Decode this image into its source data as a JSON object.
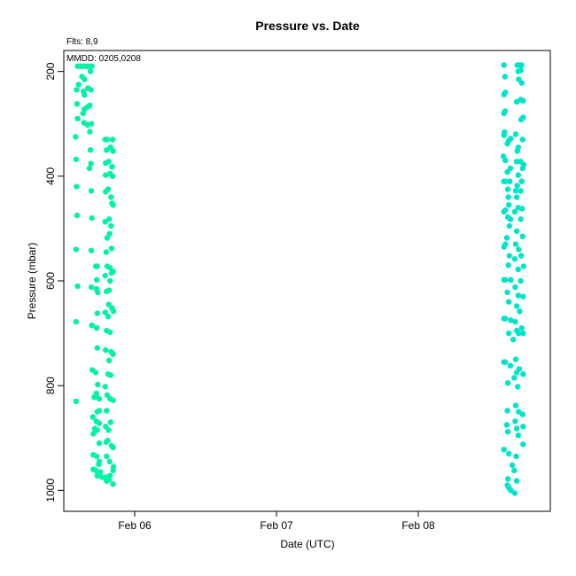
{
  "chart_data": {
    "type": "scatter",
    "title": "Pressure  vs. Date",
    "annotations": [
      "Flts: 8,9",
      "MMDD: 0205,0208"
    ],
    "xlabel": "Date (UTC)",
    "ylabel": "Pressure (mbar)",
    "x_ticks": [
      "Feb 06",
      "Feb 07",
      "Feb 08"
    ],
    "y_ticks": [
      200,
      400,
      600,
      800,
      1000
    ],
    "ylim": [
      1040,
      160
    ],
    "y_inverted": true,
    "grid": false,
    "series": [
      {
        "color": "#00f2a8",
        "points": [
          [
            "2005-02-05T14:20",
            190
          ],
          [
            "2005-02-05T14:50",
            190
          ],
          [
            "2005-02-05T15:20",
            190
          ],
          [
            "2005-02-05T15:50",
            190
          ],
          [
            "2005-02-05T16:20",
            190
          ],
          [
            "2005-02-05T16:45",
            190
          ],
          [
            "2005-02-05T16:30",
            200
          ],
          [
            "2005-02-05T15:05",
            210
          ],
          [
            "2005-02-05T15:30",
            215
          ],
          [
            "2005-02-05T14:30",
            225
          ],
          [
            "2005-02-05T14:10",
            235
          ],
          [
            "2005-02-05T15:20",
            238
          ],
          [
            "2005-02-05T16:05",
            232
          ],
          [
            "2005-02-05T16:35",
            235
          ],
          [
            "2005-02-05T15:30",
            245
          ],
          [
            "2005-02-05T14:15",
            262
          ],
          [
            "2005-02-05T16:00",
            268
          ],
          [
            "2005-02-05T15:30",
            272
          ],
          [
            "2005-02-05T16:25",
            265
          ],
          [
            "2005-02-05T15:15",
            280
          ],
          [
            "2005-02-05T14:20",
            290
          ],
          [
            "2005-02-05T15:25",
            298
          ],
          [
            "2005-02-05T16:00",
            302
          ],
          [
            "2005-02-05T16:40",
            300
          ],
          [
            "2005-02-05T16:25",
            315
          ],
          [
            "2005-02-05T14:00",
            325
          ],
          [
            "2005-02-05T19:00",
            330
          ],
          [
            "2005-02-05T19:20",
            330
          ],
          [
            "2005-02-05T20:15",
            330
          ],
          [
            "2005-02-05T19:55",
            345
          ],
          [
            "2005-02-05T16:30",
            350
          ],
          [
            "2005-02-05T20:20",
            352
          ],
          [
            "2005-02-05T19:15",
            350
          ],
          [
            "2005-02-05T14:05",
            368
          ],
          [
            "2005-02-05T19:05",
            375
          ],
          [
            "2005-02-05T19:35",
            372
          ],
          [
            "2005-02-05T16:35",
            376
          ],
          [
            "2005-02-05T20:10",
            382
          ],
          [
            "2005-02-05T16:20",
            385
          ],
          [
            "2005-02-05T20:15",
            400
          ],
          [
            "2005-02-05T19:05",
            398
          ],
          [
            "2005-02-05T19:50",
            395
          ],
          [
            "2005-02-05T14:10",
            420
          ],
          [
            "2005-02-05T19:30",
            425
          ],
          [
            "2005-02-05T19:05",
            430
          ],
          [
            "2005-02-05T16:40",
            428
          ],
          [
            "2005-02-05T20:00",
            440
          ],
          [
            "2005-02-05T20:10",
            452
          ],
          [
            "2005-02-05T20:20",
            455
          ],
          [
            "2005-02-05T14:15",
            475
          ],
          [
            "2005-02-05T16:45",
            480
          ],
          [
            "2005-02-05T19:40",
            482
          ],
          [
            "2005-02-05T19:00",
            487
          ],
          [
            "2005-02-05T20:00",
            495
          ],
          [
            "2005-02-05T19:45",
            510
          ],
          [
            "2005-02-05T19:20",
            518
          ],
          [
            "2005-02-05T20:05",
            538
          ],
          [
            "2005-02-05T14:05",
            540
          ],
          [
            "2005-02-05T16:40",
            542
          ],
          [
            "2005-02-05T19:10",
            545
          ],
          [
            "2005-02-05T17:25",
            572
          ],
          [
            "2005-02-05T17:40",
            572
          ],
          [
            "2005-02-05T19:20",
            572
          ],
          [
            "2005-02-05T19:50",
            575
          ],
          [
            "2005-02-05T20:20",
            582
          ],
          [
            "2005-02-05T20:05",
            585
          ],
          [
            "2005-02-05T19:00",
            590
          ],
          [
            "2005-02-05T17:35",
            598
          ],
          [
            "2005-02-05T19:50",
            600
          ],
          [
            "2005-02-05T14:20",
            610
          ],
          [
            "2005-02-05T16:40",
            612
          ],
          [
            "2005-02-05T17:30",
            615
          ],
          [
            "2005-02-05T19:15",
            620
          ],
          [
            "2005-02-05T19:40",
            618
          ],
          [
            "2005-02-05T17:45",
            622
          ],
          [
            "2005-02-05T19:35",
            645
          ],
          [
            "2005-02-05T20:10",
            652
          ],
          [
            "2005-02-05T20:25",
            658
          ],
          [
            "2005-02-05T19:00",
            660
          ],
          [
            "2005-02-05T17:40",
            662
          ],
          [
            "2005-02-05T19:30",
            668
          ],
          [
            "2005-02-05T14:05",
            678
          ],
          [
            "2005-02-05T16:45",
            685
          ],
          [
            "2005-02-05T17:35",
            690
          ],
          [
            "2005-02-05T19:15",
            695
          ],
          [
            "2005-02-05T19:50",
            698
          ],
          [
            "2005-02-05T17:40",
            728
          ],
          [
            "2005-02-05T19:05",
            732
          ],
          [
            "2005-02-05T20:00",
            735
          ],
          [
            "2005-02-05T20:20",
            740
          ],
          [
            "2005-02-05T19:40",
            752
          ],
          [
            "2005-02-05T16:50",
            770
          ],
          [
            "2005-02-05T17:25",
            775
          ],
          [
            "2005-02-05T19:30",
            778
          ],
          [
            "2005-02-05T19:55",
            780
          ],
          [
            "2005-02-05T17:45",
            798
          ],
          [
            "2005-02-05T19:00",
            802
          ],
          [
            "2005-02-05T17:30",
            815
          ],
          [
            "2005-02-05T17:10",
            822
          ],
          [
            "2005-02-05T17:30",
            820
          ],
          [
            "2005-02-05T18:00",
            825
          ],
          [
            "2005-02-05T19:20",
            818
          ],
          [
            "2005-02-05T19:50",
            825
          ],
          [
            "2005-02-05T20:20",
            828
          ],
          [
            "2005-02-05T14:05",
            830
          ],
          [
            "2005-02-05T18:00",
            848
          ],
          [
            "2005-02-05T17:40",
            850
          ],
          [
            "2005-02-05T19:15",
            848
          ],
          [
            "2005-02-05T16:55",
            860
          ],
          [
            "2005-02-05T17:30",
            868
          ],
          [
            "2005-02-05T18:00",
            872
          ],
          [
            "2005-02-05T19:55",
            870
          ],
          [
            "2005-02-05T17:15",
            882
          ],
          [
            "2005-02-05T17:40",
            885
          ],
          [
            "2005-02-05T19:05",
            878
          ],
          [
            "2005-02-05T17:00",
            892
          ],
          [
            "2005-02-05T19:35",
            885
          ],
          [
            "2005-02-05T19:10",
            908
          ],
          [
            "2005-02-05T19:25",
            905
          ],
          [
            "2005-02-05T18:00",
            910
          ],
          [
            "2005-02-05T20:05",
            915
          ],
          [
            "2005-02-05T20:20",
            918
          ],
          [
            "2005-02-05T17:00",
            932
          ],
          [
            "2005-02-05T17:35",
            935
          ],
          [
            "2005-02-05T19:15",
            935
          ],
          [
            "2005-02-05T18:00",
            945
          ],
          [
            "2005-02-05T17:55",
            950
          ],
          [
            "2005-02-05T19:45",
            945
          ],
          [
            "2005-02-05T20:25",
            955
          ],
          [
            "2005-02-05T17:00",
            960
          ],
          [
            "2005-02-05T17:25",
            962
          ],
          [
            "2005-02-05T18:10",
            965
          ],
          [
            "2005-02-05T20:20",
            962
          ],
          [
            "2005-02-05T17:40",
            972
          ],
          [
            "2005-02-05T18:30",
            975
          ],
          [
            "2005-02-05T19:10",
            975
          ],
          [
            "2005-02-05T19:50",
            972
          ],
          [
            "2005-02-05T19:15",
            982
          ],
          [
            "2005-02-05T19:40",
            980
          ],
          [
            "2005-02-05T20:20",
            988
          ]
        ]
      },
      {
        "color": "#00e5c8",
        "points": [
          [
            "2005-02-08T14:30",
            188
          ],
          [
            "2005-02-08T16:45",
            188
          ],
          [
            "2005-02-08T17:10",
            188
          ],
          [
            "2005-02-08T17:30",
            188
          ],
          [
            "2005-02-08T16:55",
            200
          ],
          [
            "2005-02-08T17:20",
            198
          ],
          [
            "2005-02-08T14:40",
            210
          ],
          [
            "2005-02-08T17:00",
            215
          ],
          [
            "2005-02-08T17:30",
            222
          ],
          [
            "2005-02-08T14:45",
            240
          ],
          [
            "2005-02-08T14:30",
            244
          ],
          [
            "2005-02-08T17:20",
            254
          ],
          [
            "2005-02-08T17:45",
            256
          ],
          [
            "2005-02-08T16:40",
            258
          ],
          [
            "2005-02-08T14:40",
            276
          ],
          [
            "2005-02-08T14:30",
            280
          ],
          [
            "2005-02-08T17:45",
            288
          ],
          [
            "2005-02-08T17:25",
            292
          ],
          [
            "2005-02-08T14:35",
            316
          ],
          [
            "2005-02-08T14:30",
            322
          ],
          [
            "2005-02-08T16:30",
            320
          ],
          [
            "2005-02-08T15:40",
            328
          ],
          [
            "2005-02-08T15:20",
            332
          ],
          [
            "2005-02-08T17:40",
            330
          ],
          [
            "2005-02-08T15:05",
            338
          ],
          [
            "2005-02-08T16:55",
            345
          ],
          [
            "2005-02-08T16:45",
            352
          ],
          [
            "2005-02-08T14:25",
            362
          ],
          [
            "2005-02-08T14:45",
            370
          ],
          [
            "2005-02-08T16:40",
            372
          ],
          [
            "2005-02-08T17:20",
            372
          ],
          [
            "2005-02-08T17:50",
            378
          ],
          [
            "2005-02-08T17:40",
            385
          ],
          [
            "2005-02-08T15:35",
            385
          ],
          [
            "2005-02-08T15:05",
            392
          ],
          [
            "2005-02-08T16:55",
            398
          ],
          [
            "2005-02-08T14:30",
            410
          ],
          [
            "2005-02-08T14:45",
            410
          ],
          [
            "2005-02-08T15:30",
            410
          ],
          [
            "2005-02-08T17:30",
            410
          ],
          [
            "2005-02-08T16:45",
            418
          ],
          [
            "2005-02-08T15:10",
            425
          ],
          [
            "2005-02-08T16:30",
            428
          ],
          [
            "2005-02-08T17:20",
            428
          ],
          [
            "2005-02-08T15:15",
            440
          ],
          [
            "2005-02-08T16:40",
            440
          ],
          [
            "2005-02-08T15:20",
            455
          ],
          [
            "2005-02-08T16:55",
            460
          ],
          [
            "2005-02-08T17:35",
            462
          ],
          [
            "2005-02-08T14:30",
            468
          ],
          [
            "2005-02-08T14:45",
            465
          ],
          [
            "2005-02-08T16:20",
            468
          ],
          [
            "2005-02-08T15:10",
            478
          ],
          [
            "2005-02-08T15:35",
            482
          ],
          [
            "2005-02-08T17:20",
            482
          ],
          [
            "2005-02-08T15:25",
            495
          ],
          [
            "2005-02-08T16:40",
            505
          ],
          [
            "2005-02-08T17:40",
            515
          ],
          [
            "2005-02-08T15:00",
            518
          ],
          [
            "2005-02-08T14:45",
            530
          ],
          [
            "2005-02-08T14:30",
            535
          ],
          [
            "2005-02-08T16:30",
            530
          ],
          [
            "2005-02-08T17:00",
            540
          ],
          [
            "2005-02-08T15:25",
            552
          ],
          [
            "2005-02-08T16:20",
            558
          ],
          [
            "2005-02-08T17:25",
            552
          ],
          [
            "2005-02-08T15:15",
            570
          ],
          [
            "2005-02-08T17:50",
            572
          ],
          [
            "2005-02-08T16:55",
            578
          ],
          [
            "2005-02-08T14:30",
            598
          ],
          [
            "2005-02-08T14:45",
            598
          ],
          [
            "2005-02-08T15:40",
            598
          ],
          [
            "2005-02-08T17:20",
            600
          ],
          [
            "2005-02-08T16:25",
            612
          ],
          [
            "2005-02-08T15:05",
            622
          ],
          [
            "2005-02-08T16:55",
            628
          ],
          [
            "2005-02-08T17:45",
            630
          ],
          [
            "2005-02-08T15:20",
            640
          ],
          [
            "2005-02-08T16:40",
            648
          ],
          [
            "2005-02-08T17:10",
            658
          ],
          [
            "2005-02-08T14:30",
            672
          ],
          [
            "2005-02-08T14:45",
            672
          ],
          [
            "2005-02-08T15:40",
            675
          ],
          [
            "2005-02-08T16:25",
            678
          ],
          [
            "2005-02-08T17:30",
            690
          ],
          [
            "2005-02-08T16:40",
            695
          ],
          [
            "2005-02-08T15:20",
            700
          ],
          [
            "2005-02-08T17:00",
            700
          ],
          [
            "2005-02-08T17:45",
            700
          ],
          [
            "2005-02-08T16:05",
            712
          ],
          [
            "2005-02-08T14:30",
            755
          ],
          [
            "2005-02-08T14:45",
            755
          ],
          [
            "2005-02-08T16:30",
            750
          ],
          [
            "2005-02-08T15:35",
            762
          ],
          [
            "2005-02-08T17:05",
            768
          ],
          [
            "2005-02-08T16:40",
            775
          ],
          [
            "2005-02-08T17:45",
            778
          ],
          [
            "2005-02-08T16:15",
            785
          ],
          [
            "2005-02-08T15:10",
            795
          ],
          [
            "2005-02-08T16:50",
            802
          ],
          [
            "2005-02-08T16:30",
            838
          ],
          [
            "2005-02-08T15:05",
            848
          ],
          [
            "2005-02-08T17:00",
            850
          ],
          [
            "2005-02-08T17:40",
            855
          ],
          [
            "2005-02-08T16:25",
            868
          ],
          [
            "2005-02-08T15:00",
            875
          ],
          [
            "2005-02-08T16:40",
            882
          ],
          [
            "2005-02-08T17:45",
            878
          ],
          [
            "2005-02-08T15:10",
            888
          ],
          [
            "2005-02-08T16:55",
            895
          ],
          [
            "2005-02-08T17:45",
            912
          ],
          [
            "2005-02-08T14:30",
            922
          ],
          [
            "2005-02-08T15:20",
            930
          ],
          [
            "2005-02-08T16:35",
            935
          ],
          [
            "2005-02-08T15:55",
            952
          ],
          [
            "2005-02-08T16:15",
            962
          ],
          [
            "2005-02-08T15:10",
            978
          ],
          [
            "2005-02-08T16:40",
            982
          ],
          [
            "2005-02-08T15:05",
            990
          ],
          [
            "2005-02-08T15:20",
            995
          ],
          [
            "2005-02-08T15:40",
            1000
          ],
          [
            "2005-02-08T16:20",
            1005
          ]
        ]
      }
    ]
  }
}
